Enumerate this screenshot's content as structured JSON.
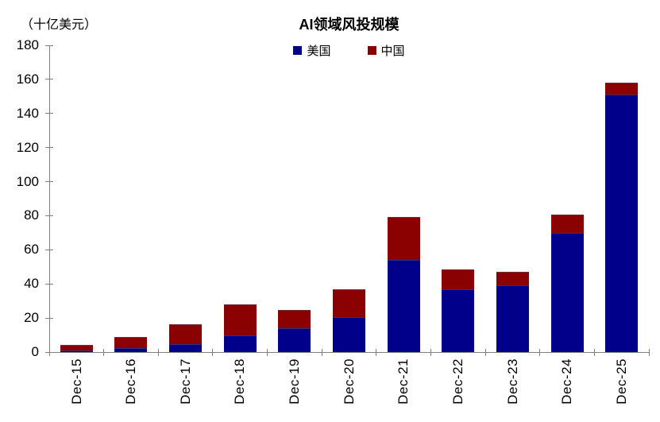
{
  "chart_data": {
    "type": "bar",
    "stacked": true,
    "title": "AI领域风投规模",
    "unit_label": "（十亿美元）",
    "categories": [
      "Dec-15",
      "Dec-16",
      "Dec-17",
      "Dec-18",
      "Dec-19",
      "Dec-20",
      "Dec-21",
      "Dec-22",
      "Dec-23",
      "Dec-24",
      "Dec-25"
    ],
    "series": [
      {
        "name": "美国",
        "color": "#00008B",
        "values": [
          1,
          2.5,
          4.5,
          10,
          14,
          20.5,
          54,
          37,
          39,
          70,
          151
        ]
      },
      {
        "name": "中国",
        "color": "#8B0000",
        "values": [
          3,
          6.5,
          12,
          18,
          10.5,
          16.5,
          25.5,
          11.5,
          8,
          10.5,
          7
        ]
      }
    ],
    "ylim": [
      0,
      180
    ],
    "yticks": [
      0,
      20,
      40,
      60,
      80,
      100,
      120,
      140,
      160,
      180
    ],
    "ylabel": "",
    "xlabel": "",
    "grid": false,
    "legend_position": "top-center",
    "axis_color": "#808080",
    "text_color": "#000000",
    "background_color": "#FFFFFF"
  }
}
